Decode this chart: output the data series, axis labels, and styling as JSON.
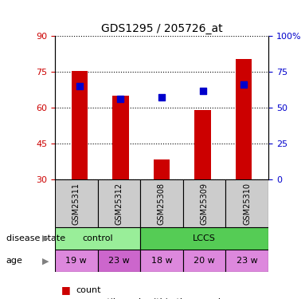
{
  "title": "GDS1295 / 205726_at",
  "samples": [
    "GSM25311",
    "GSM25312",
    "GSM25308",
    "GSM25309",
    "GSM25310"
  ],
  "bar_values": [
    75.5,
    65.0,
    38.5,
    59.0,
    80.5
  ],
  "percentile_values": [
    65.0,
    56.0,
    57.5,
    61.5,
    66.0
  ],
  "ylim_left": [
    30,
    90
  ],
  "ylim_right": [
    0,
    100
  ],
  "yticks_left": [
    30,
    45,
    60,
    75,
    90
  ],
  "yticks_right": [
    0,
    25,
    50,
    75,
    100
  ],
  "bar_color": "#cc0000",
  "percentile_color": "#0000cc",
  "bar_width": 0.4,
  "disease_groups": [
    {
      "label": "control",
      "indices": [
        0,
        1
      ],
      "color": "#99ee99"
    },
    {
      "label": "LCCS",
      "indices": [
        2,
        3,
        4
      ],
      "color": "#55cc55"
    }
  ],
  "age": [
    "19 w",
    "23 w",
    "18 w",
    "20 w",
    "23 w"
  ],
  "age_colors": [
    "#dd88dd",
    "#cc66cc",
    "#dd88dd",
    "#dd88dd",
    "#dd88dd"
  ],
  "sample_box_color": "#cccccc",
  "left_tick_color": "#cc0000",
  "right_tick_color": "#0000cc"
}
